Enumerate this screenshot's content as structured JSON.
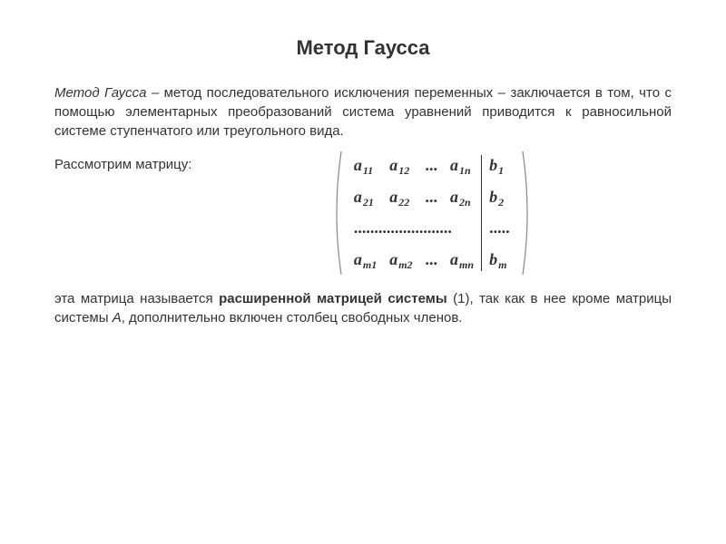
{
  "title": "Метод Гаусса",
  "p1_intro_italic": "Метод Гаусса",
  "p1_rest": " – метод последовательного исключения переменных – заключается в том, что с помощью элементарных преобразований система уравнений приводится к равносильной системе ступенчатого или треугольного вида.",
  "label_matrix": "Рассмотрим матрицу:",
  "matrix": {
    "rows": [
      {
        "a": [
          "a|11",
          "a|12",
          "...",
          "a|1n"
        ],
        "b": "b|1"
      },
      {
        "a": [
          "a|21",
          "a|22",
          "...",
          "a|2n"
        ],
        "b": "b|2"
      },
      {
        "a": [
          "........................"
        ],
        "b": "....."
      },
      {
        "a": [
          "a|m1",
          "a|m2",
          "...",
          "a|mn"
        ],
        "b": "b|m"
      }
    ],
    "paren_color": "#888888",
    "sep_color": "#333333"
  },
  "p2_a": "эта матрица называется ",
  "p2_bold": "расширенной матрицей системы",
  "p2_b": " (1), так как в нее кроме матрицы системы ",
  "p2_ital": "А",
  "p2_c": ", дополнительно включен столбец свободных членов.",
  "colors": {
    "text": "#333333",
    "bg": "#ffffff"
  },
  "fonts": {
    "body_size": 15,
    "title_size": 22,
    "math_size": 18,
    "sub_size": 12
  }
}
